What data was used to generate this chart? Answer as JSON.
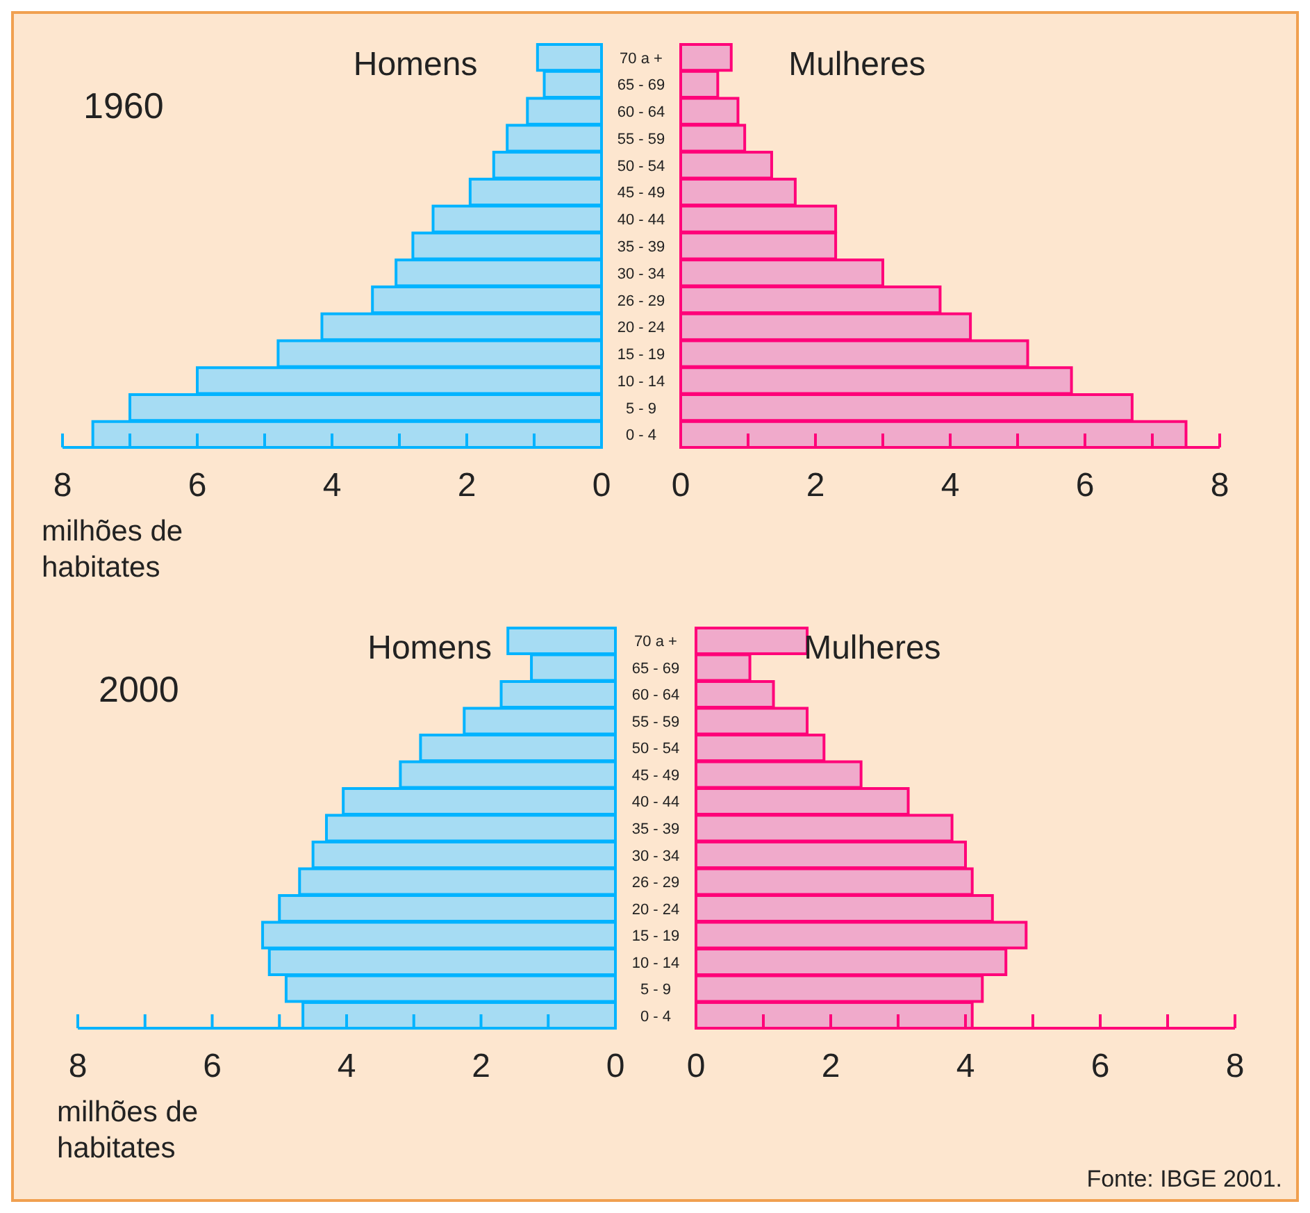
{
  "chart_data": [
    {
      "type": "bar",
      "orientation": "horizontal",
      "title": "1960",
      "xlabel": "milhões de habitates",
      "tick_labels": "x",
      "categories": [
        "70 a +",
        "65 - 69",
        "60 - 64",
        "55 - 59",
        "50 - 54",
        "45 - 49",
        "40 - 44",
        "35 - 39",
        "30 - 34",
        "26 - 29",
        "20 - 24",
        "15 - 19",
        "10 - 14",
        "5 - 9",
        "0 - 4"
      ],
      "series": [
        {
          "name": "Homens",
          "color": "#a6dcf3",
          "values": [
            0.95,
            0.85,
            1.1,
            1.4,
            1.6,
            1.95,
            2.5,
            2.8,
            3.05,
            3.4,
            4.15,
            4.8,
            6.0,
            7.0,
            7.55
          ]
        }
      ],
      "xlim": [
        8,
        0
      ],
      "xticks": [
        8,
        {
          "value": 7,
          "label": null
        },
        6,
        {
          "value": 5,
          "label": null
        },
        4,
        {
          "value": 3,
          "label": null
        },
        2,
        {
          "value": 1,
          "label": null
        },
        0
      ]
    },
    {
      "type": "bar",
      "orientation": "horizontal",
      "categories": [
        "70 a +",
        "65 - 69",
        "60 - 64",
        "55 - 59",
        "50 - 54",
        "45 - 49",
        "40 - 44",
        "35 - 39",
        "30 - 34",
        "26 - 29",
        "20 - 24",
        "15 - 19",
        "10 - 14",
        "5 - 9",
        "0 - 4"
      ],
      "series": [
        {
          "name": "Mulheres",
          "color": "#f0aacb",
          "values": [
            0.75,
            0.55,
            0.85,
            0.95,
            1.35,
            1.7,
            2.3,
            2.3,
            3.0,
            3.85,
            4.3,
            5.15,
            5.8,
            6.7,
            7.5
          ]
        }
      ],
      "xlim": [
        0,
        8
      ],
      "xticks": [
        0,
        {
          "value": 1,
          "label": null
        },
        2,
        {
          "value": 3,
          "label": null
        },
        4,
        {
          "value": 5,
          "label": null
        },
        6,
        {
          "value": 7,
          "label": null
        },
        8
      ]
    },
    {
      "type": "bar",
      "orientation": "horizontal",
      "title": "2000",
      "xlabel": "milhões de habitates",
      "tick_labels": "x",
      "categories": [
        "70 a +",
        "65 - 69",
        "60 - 64",
        "55 - 59",
        "50 - 54",
        "45 - 49",
        "40 - 44",
        "35 - 39",
        "30 - 34",
        "26 - 29",
        "20 - 24",
        "15 - 19",
        "10 - 14",
        "5 - 9",
        "0 - 4"
      ],
      "series": [
        {
          "name": "Homens",
          "color": "#a6dcf3",
          "values": [
            1.6,
            1.25,
            1.7,
            2.25,
            2.9,
            3.2,
            4.05,
            4.3,
            4.5,
            4.7,
            5.0,
            5.25,
            5.15,
            4.9,
            4.65
          ]
        }
      ],
      "xlim": [
        8,
        0
      ],
      "xticks": [
        8,
        {
          "value": 7,
          "label": null
        },
        6,
        {
          "value": 5,
          "label": null
        },
        4,
        {
          "value": 3,
          "label": null
        },
        2,
        {
          "value": 1,
          "label": null
        },
        0
      ]
    },
    {
      "type": "bar",
      "orientation": "horizontal",
      "annotations": [
        "Fonte: IBGE 2001."
      ],
      "categories": [
        "70 a +",
        "65 - 69",
        "60 - 64",
        "55 - 59",
        "50 - 54",
        "45 - 49",
        "40 - 44",
        "35 - 39",
        "30 - 34",
        "26 - 29",
        "20 - 24",
        "15 - 19",
        "10 - 14",
        "5 - 9",
        "0 - 4"
      ],
      "series": [
        {
          "name": "Mulheres",
          "color": "#f0aacb",
          "values": [
            1.65,
            0.8,
            1.15,
            1.65,
            1.9,
            2.45,
            3.15,
            3.8,
            4.0,
            4.1,
            4.4,
            4.9,
            4.6,
            4.25,
            4.1
          ]
        }
      ],
      "xlim": [
        0,
        8
      ],
      "xticks": [
        0,
        {
          "value": 1,
          "label": null
        },
        2,
        {
          "value": 3,
          "label": null
        },
        4,
        {
          "value": 5,
          "label": null
        },
        6,
        {
          "value": 7,
          "label": null
        },
        8
      ]
    }
  ]
}
